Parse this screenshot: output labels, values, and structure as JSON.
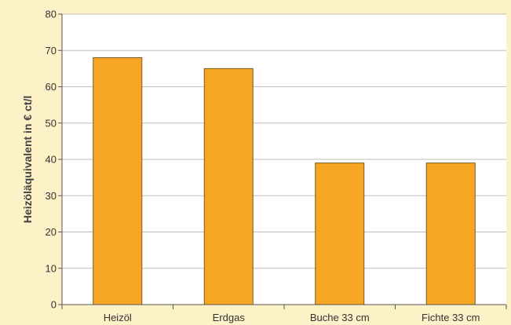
{
  "chart_data": {
    "type": "bar",
    "categories": [
      "Heizöl",
      "Erdgas",
      "Buche 33 cm",
      "Fichte 33 cm"
    ],
    "values": [
      68,
      65,
      39,
      39
    ],
    "xlabel": "",
    "ylabel": "Heizöläquivalent in € ct/l",
    "ylim": [
      0,
      80
    ],
    "yticks": [
      0,
      10,
      20,
      30,
      40,
      50,
      60,
      70,
      80
    ],
    "grid": true,
    "legend": "none"
  },
  "colors": {
    "background": "#fdf1c7",
    "plot_area": "#ffffff",
    "bar_fill": "#f6a623",
    "bar_stroke": "#7a5a1a",
    "grid": "#bdbdbd",
    "axis": "#555555"
  }
}
